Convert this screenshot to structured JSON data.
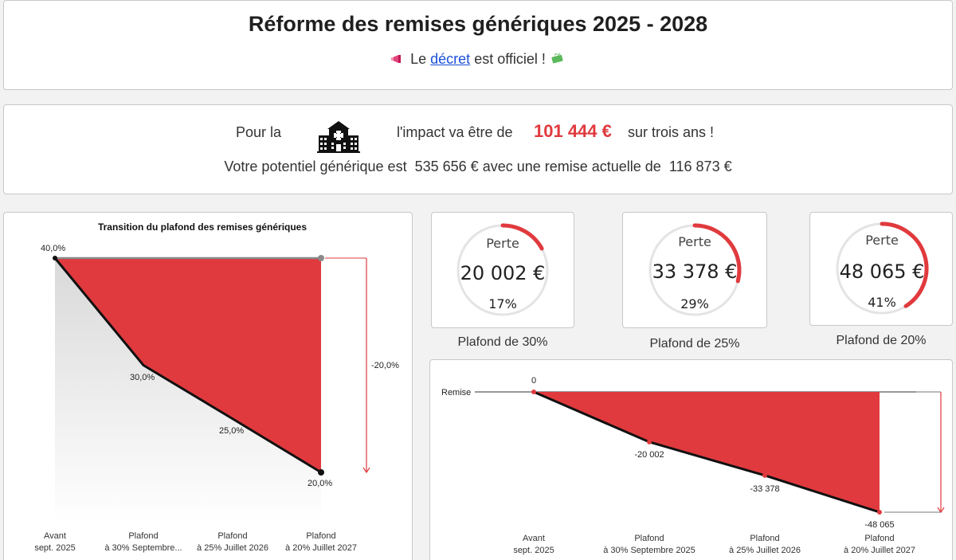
{
  "header": {
    "title": "Réforme des remises génériques 2025 - 2028",
    "subtitle_prefix": "Le",
    "subtitle_link": "décret",
    "subtitle_suffix": "est officiel !"
  },
  "impact": {
    "prefix": "Pour la",
    "middle": "l'impact va être de",
    "amount": "101 444 €",
    "suffix": "sur trois ans !",
    "potential_prefix": "Votre potentiel générique est",
    "potential_value": "535 656 €",
    "potential_middle": "avec une remise actuelle de",
    "current_remise": "116 873 €"
  },
  "gauges": [
    {
      "label": "Perte",
      "value": "20 002 €",
      "percent": "17%",
      "fraction": 0.17,
      "caption": "Plafond de 30%"
    },
    {
      "label": "Perte",
      "value": "33 378 €",
      "percent": "29%",
      "fraction": 0.29,
      "caption": "Plafond de 25%"
    },
    {
      "label": "Perte",
      "value": "48 065 €",
      "percent": "41%",
      "fraction": 0.41,
      "caption": "Plafond de 20%"
    }
  ],
  "colors": {
    "accent": "#e03a3e",
    "line": "#111111",
    "gauge_track": "#e4e4e4"
  },
  "chart_data": [
    {
      "type": "area",
      "title": "Transition du plafond des remises génériques",
      "categories": [
        [
          "Avant",
          "sept. 2025"
        ],
        [
          "Plafond",
          "à 30% Septembre..."
        ],
        [
          "Plafond",
          "à 25% Juillet 2026"
        ],
        [
          "Plafond",
          "à 20% Juillet 2027"
        ]
      ],
      "values": [
        40,
        30,
        25,
        20
      ],
      "value_labels": [
        "40,0%",
        "30,0%",
        "25,0%",
        "20,0%"
      ],
      "reference_value": 40,
      "difference_label": "-20,0%",
      "ylim": [
        20,
        40
      ]
    },
    {
      "type": "area",
      "title": "",
      "reference_label": "Remise",
      "categories": [
        [
          "Avant",
          "sept. 2025"
        ],
        [
          "Plafond",
          "à 30% Septembre 2025"
        ],
        [
          "Plafond",
          "à 25% Juillet 2026"
        ],
        [
          "Plafond",
          "à 20% Juillet 2027"
        ]
      ],
      "values": [
        0,
        -20002,
        -33378,
        -48065
      ],
      "value_labels": [
        "0",
        "-20 002",
        "-33 378",
        "-48 065"
      ],
      "ylim": [
        -48065,
        0
      ]
    }
  ]
}
